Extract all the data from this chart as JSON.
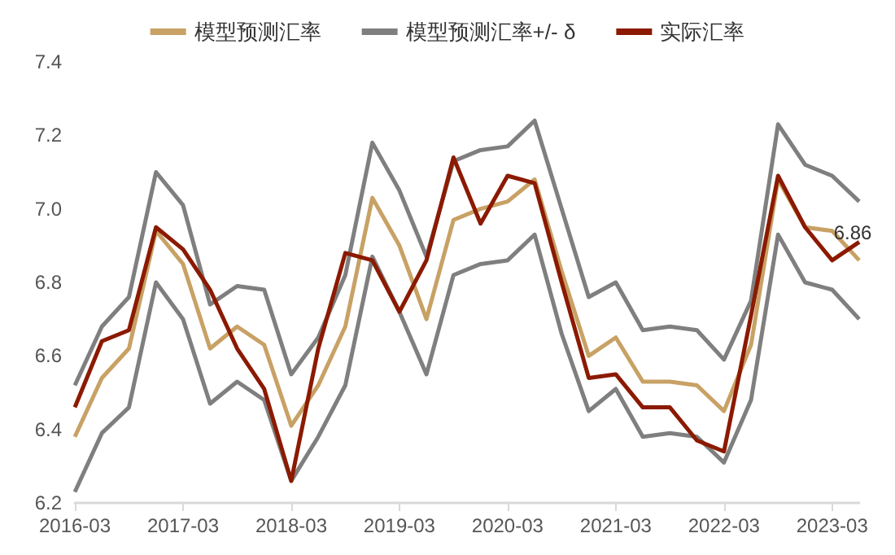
{
  "chart_data": {
    "type": "line",
    "categories": [
      "2016-03",
      null,
      null,
      null,
      "2017-03",
      null,
      null,
      null,
      "2018-03",
      null,
      null,
      null,
      "2019-03",
      null,
      null,
      null,
      "2020-03",
      null,
      null,
      null,
      "2021-03",
      null,
      null,
      null,
      "2022-03",
      null,
      null,
      null,
      "2023-03",
      null
    ],
    "series": [
      {
        "name": "模型预测汇率",
        "color": "#c8a165",
        "values": [
          6.38,
          6.54,
          6.62,
          6.94,
          6.85,
          6.62,
          6.68,
          6.63,
          6.41,
          6.52,
          6.68,
          7.03,
          6.9,
          6.7,
          6.97,
          7.0,
          7.02,
          7.08,
          6.83,
          6.6,
          6.65,
          6.53,
          6.53,
          6.52,
          6.45,
          6.63,
          7.08,
          6.95,
          6.94,
          6.86
        ],
        "value_labels": [
          null,
          null,
          null,
          null,
          null,
          null,
          null,
          null,
          null,
          null,
          null,
          null,
          null,
          null,
          null,
          null,
          null,
          null,
          null,
          null,
          null,
          null,
          null,
          null,
          null,
          null,
          null,
          null,
          null,
          "6.86"
        ]
      },
      {
        "name": "模型预测汇率+/- δ",
        "color": "#7f7f7f",
        "values": [
          6.52,
          6.68,
          6.76,
          7.1,
          7.01,
          6.74,
          6.79,
          6.78,
          6.55,
          6.65,
          6.82,
          7.18,
          7.05,
          6.87,
          7.13,
          7.16,
          7.17,
          7.24,
          7.0,
          6.76,
          6.8,
          6.67,
          6.68,
          6.67,
          6.59,
          6.75,
          7.23,
          7.12,
          7.09,
          7.02
        ]
      },
      {
        "color": "#7f7f7f",
        "values": [
          6.23,
          6.39,
          6.46,
          6.8,
          6.7,
          6.47,
          6.53,
          6.48,
          6.26,
          6.38,
          6.52,
          6.87,
          6.72,
          6.55,
          6.82,
          6.85,
          6.86,
          6.93,
          6.66,
          6.45,
          6.51,
          6.38,
          6.39,
          6.38,
          6.31,
          6.48,
          6.93,
          6.8,
          6.78,
          6.7
        ]
      },
      {
        "name": "实际汇率",
        "color": "#8b1a00",
        "values": [
          6.46,
          6.64,
          6.67,
          6.95,
          6.89,
          6.78,
          6.62,
          6.51,
          6.26,
          6.62,
          6.88,
          6.86,
          6.72,
          6.86,
          7.14,
          6.96,
          7.09,
          7.07,
          6.8,
          6.54,
          6.55,
          6.46,
          6.46,
          6.37,
          6.34,
          6.71,
          7.09,
          6.95,
          6.86,
          6.91
        ]
      }
    ],
    "ylim": [
      6.2,
      7.4
    ],
    "yticks": [
      6.2,
      6.4,
      6.6,
      6.8,
      {
        "value": 7,
        "label": "7.0"
      },
      7.2,
      7.4
    ],
    "grid": false,
    "legend": "top",
    "marker": "none",
    "line_style": "solid"
  }
}
